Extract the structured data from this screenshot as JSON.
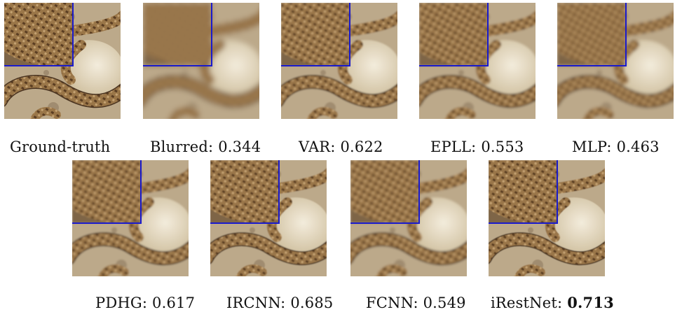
{
  "figure": {
    "rows": [
      {
        "panels": [
          {
            "id": "gt",
            "label": "Ground-truth",
            "score": "",
            "highlight": false,
            "blur": 0
          },
          {
            "id": "blurred",
            "label": "Blurred:",
            "score": "0.344",
            "highlight": false,
            "blur": 4
          },
          {
            "id": "var",
            "label": "VAR:",
            "score": "0.622",
            "highlight": false,
            "blur": 1.1
          },
          {
            "id": "epll",
            "label": "EPLL:",
            "score": "0.553",
            "highlight": false,
            "blur": 1.6
          },
          {
            "id": "mlp",
            "label": "MLP:",
            "score": "0.463",
            "highlight": false,
            "blur": 2.4
          }
        ]
      },
      {
        "panels": [
          {
            "id": "pdhg",
            "label": "PDHG:",
            "score": "0.617",
            "highlight": false,
            "blur": 1.2
          },
          {
            "id": "ircnn",
            "label": "IRCNN:",
            "score": "0.685",
            "highlight": false,
            "blur": 0.8
          },
          {
            "id": "fcnn",
            "label": "FCNN:",
            "score": "0.549",
            "highlight": false,
            "blur": 1.7
          },
          {
            "id": "irestnet",
            "label": "iRestNet:",
            "score": "0.713",
            "highlight": true,
            "blur": 0.6
          }
        ]
      }
    ],
    "inset_border_color": "#1a1acc"
  }
}
